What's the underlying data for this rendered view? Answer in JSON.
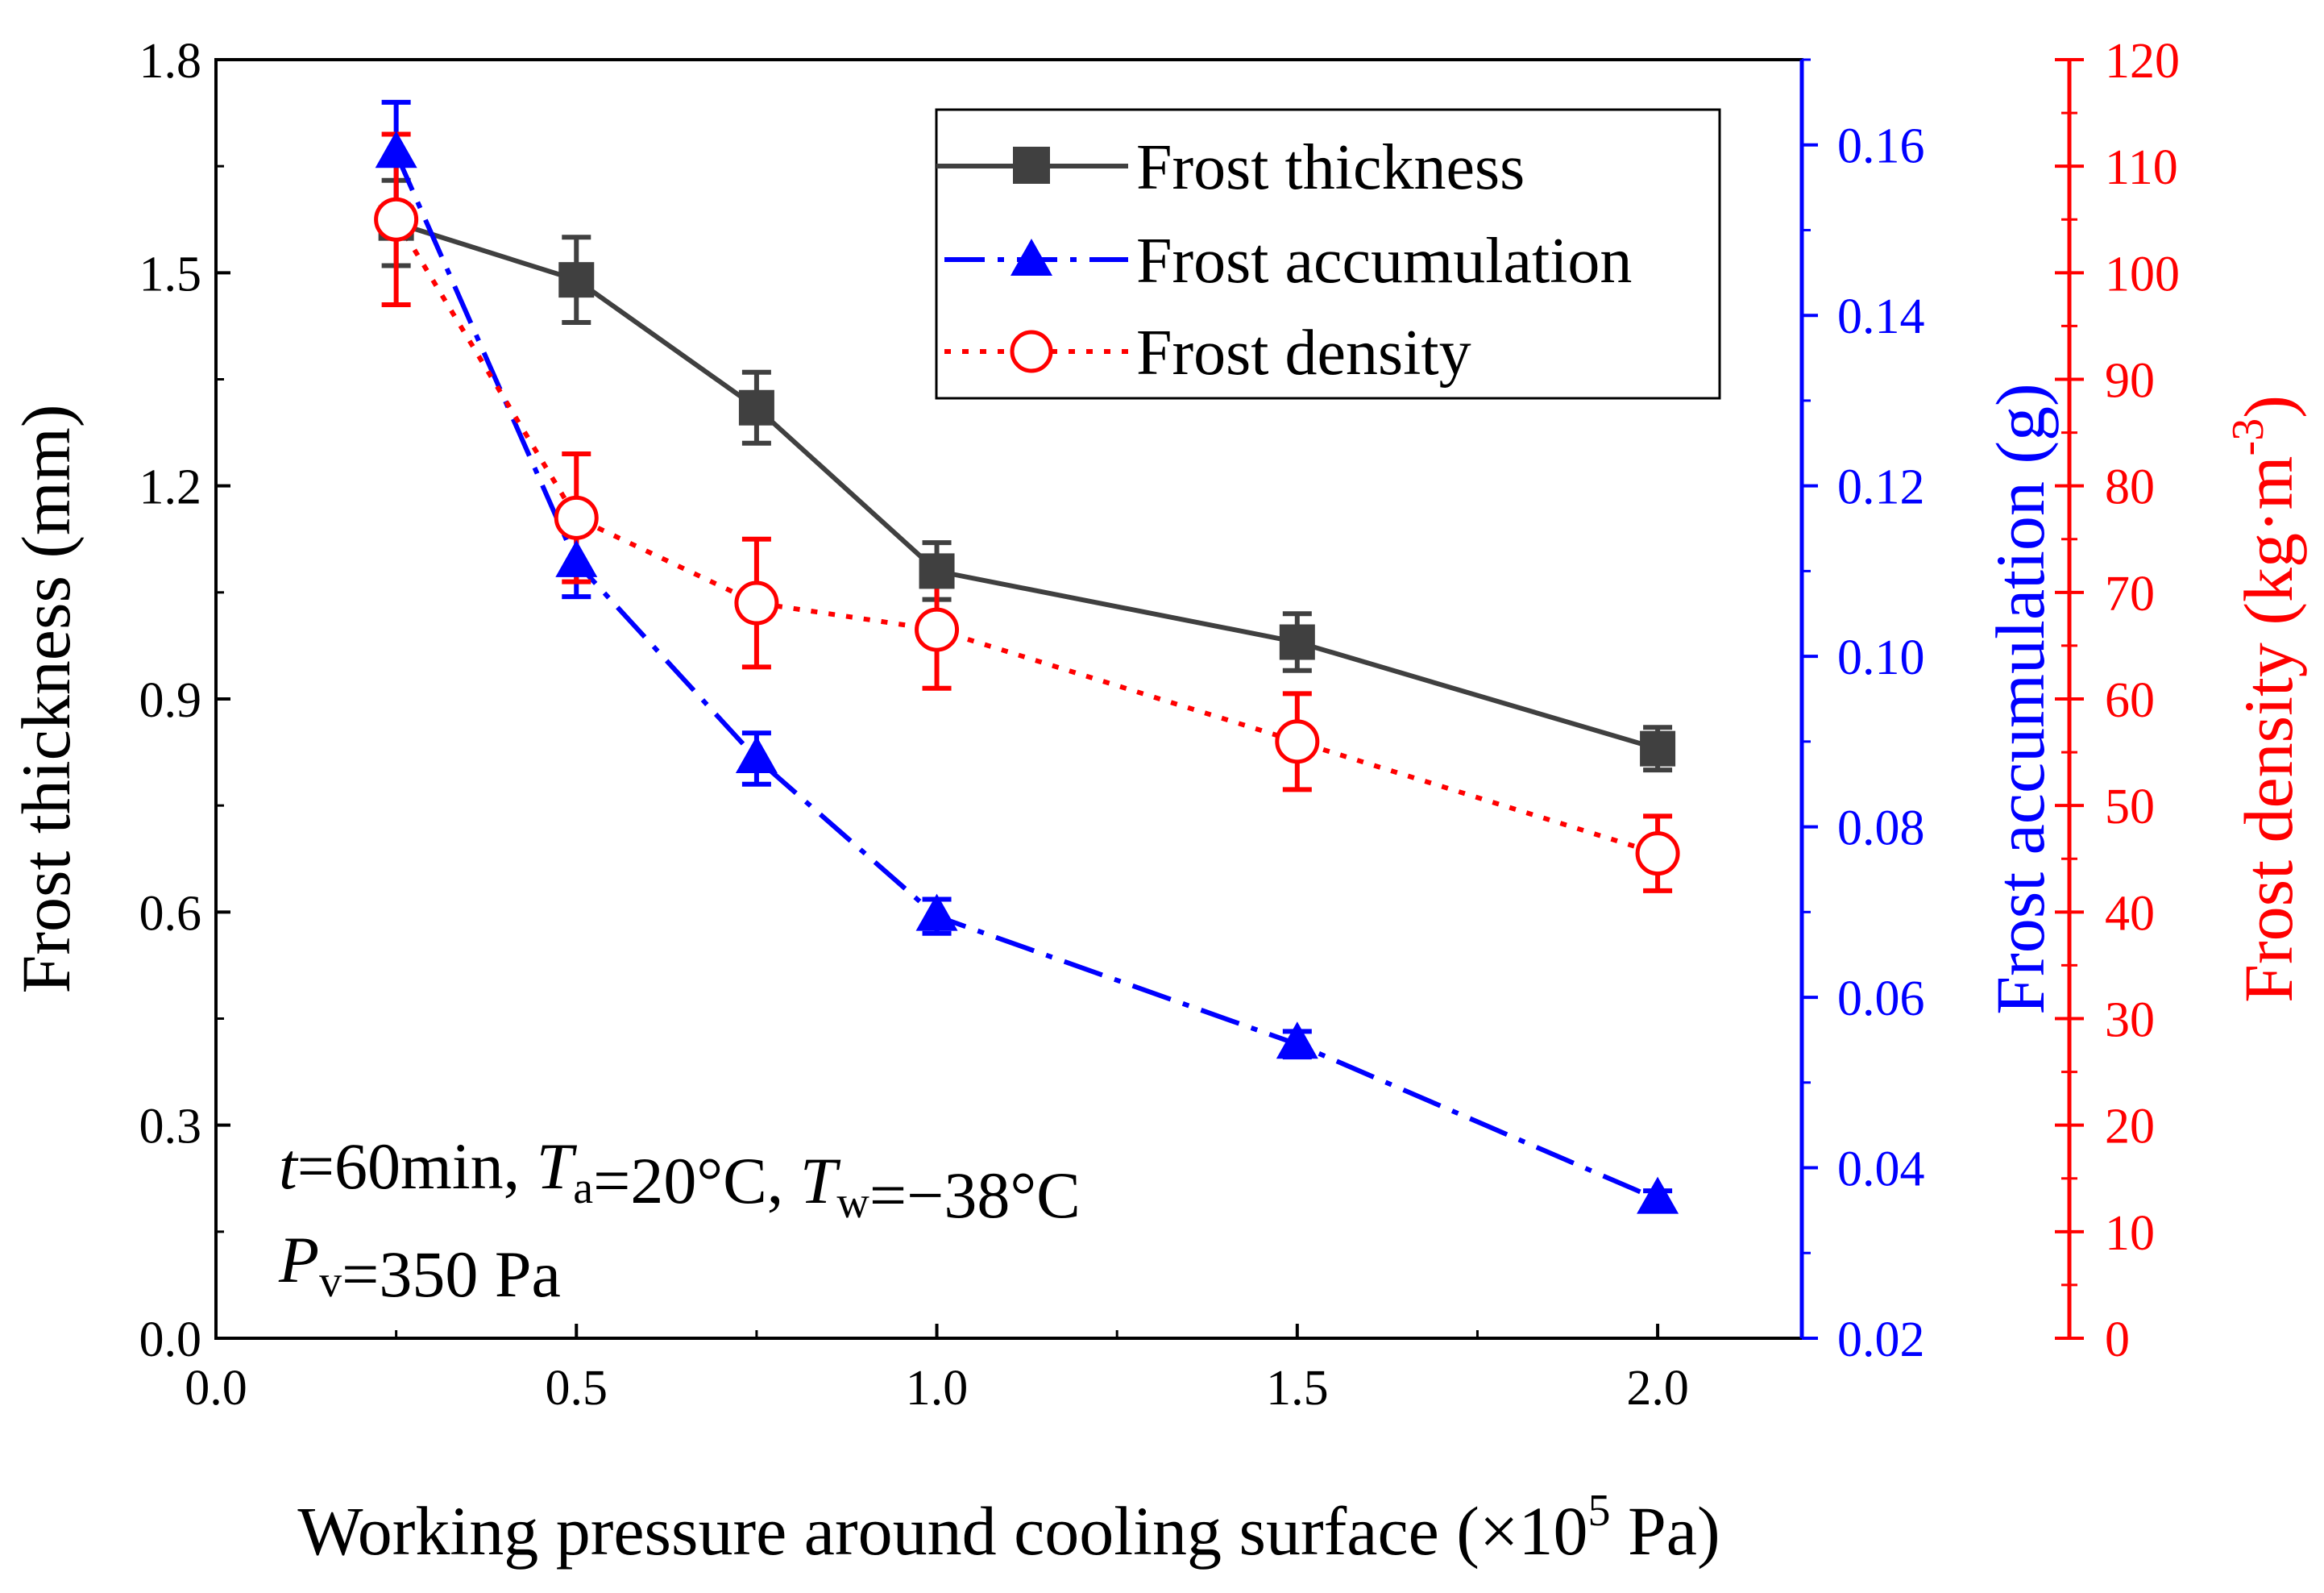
{
  "chart_data": {
    "type": "line",
    "x": [
      0.25,
      0.5,
      0.75,
      1.0,
      1.5,
      2.0
    ],
    "xlabel": {
      "pre": "Working pressure around cooling surface (×10",
      "sup": "5",
      "post": " Pa)"
    },
    "xlim": [
      0,
      2.2
    ],
    "xticks": [
      "0.0",
      "0.5",
      "1.0",
      "1.5",
      "2.0"
    ],
    "axes": {
      "left": {
        "label": "Frost thickness (mm)",
        "ylim": [
          0,
          1.8
        ],
        "ticks": [
          "0.0",
          "0.3",
          "0.6",
          "0.9",
          "1.2",
          "1.5",
          "1.8"
        ],
        "color": "#000000"
      },
      "right1": {
        "label": "Frost accumulation (g)",
        "ylim": [
          0.02,
          0.17
        ],
        "ticks": [
          "0.02",
          "0.04",
          "0.06",
          "0.08",
          "0.10",
          "0.12",
          "0.14",
          "0.16"
        ],
        "color": "#0000ff"
      },
      "right2": {
        "label_pre": "Frost density (kg·m",
        "label_sup": "-3",
        "label_post": ")",
        "ylim": [
          0,
          120
        ],
        "ticks": [
          "0",
          "10",
          "20",
          "30",
          "40",
          "50",
          "60",
          "70",
          "80",
          "90",
          "100",
          "110",
          "120"
        ],
        "color": "#ff0000"
      }
    },
    "series": [
      {
        "name": "Frost thickness",
        "axis": "left",
        "color": "#404040",
        "marker": "square",
        "line": "solid",
        "values": [
          1.57,
          1.49,
          1.31,
          1.08,
          0.98,
          0.83
        ],
        "errors": [
          0.06,
          0.06,
          0.05,
          0.04,
          0.04,
          0.03
        ]
      },
      {
        "name": "Frost accumulation",
        "axis": "right1",
        "color": "#0000ff",
        "marker": "triangle",
        "line": "dashdot",
        "values": [
          0.159,
          0.111,
          0.088,
          0.0695,
          0.0545,
          0.0363
        ],
        "errors": [
          0.006,
          0.004,
          0.003,
          0.002,
          0.0015,
          0.001
        ]
      },
      {
        "name": "Frost density",
        "axis": "right2",
        "color": "#ff0000",
        "marker": "open-circle",
        "line": "dotted",
        "values": [
          105,
          77,
          69,
          66.5,
          56,
          45.5
        ],
        "errors": [
          8,
          6,
          6,
          5.5,
          4.5,
          3.5
        ]
      }
    ],
    "legend": {
      "position": "top-right",
      "entries": [
        "Frost thickness",
        "Frost accumulation",
        "Frost density"
      ]
    },
    "annotation": {
      "line1": [
        {
          "text": "t",
          "style": "italic"
        },
        {
          "text": "=60min, "
        },
        {
          "text": "T",
          "style": "italic"
        },
        {
          "text": "a",
          "sub": true
        },
        {
          "text": "=20°C, "
        },
        {
          "text": "T",
          "style": "italic"
        },
        {
          "text": "w",
          "sub": true
        },
        {
          "text": "=−38°C"
        }
      ],
      "line2": [
        {
          "text": "P",
          "style": "italic"
        },
        {
          "text": "v",
          "sub": true
        },
        {
          "text": "=350  Pa"
        }
      ]
    }
  }
}
